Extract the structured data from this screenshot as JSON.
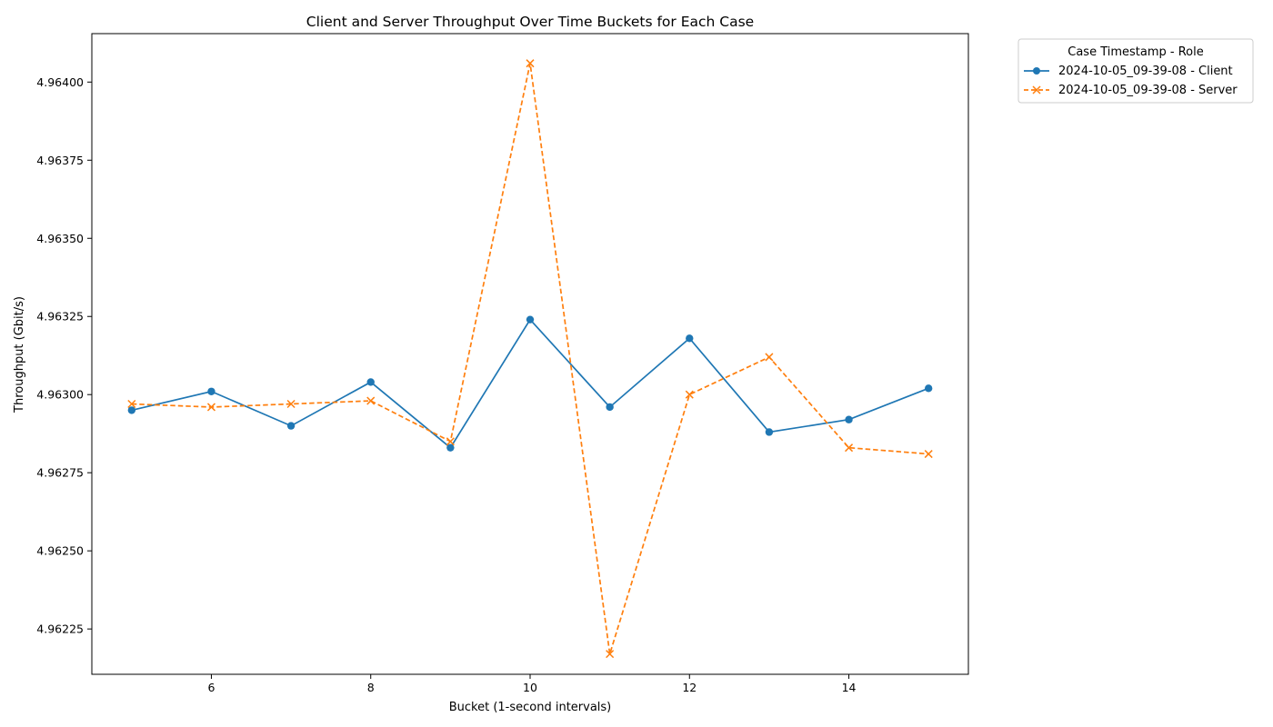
{
  "chart_data": {
    "type": "line",
    "title": "Client and Server Throughput Over Time Buckets for Each Case",
    "xlabel": "Bucket (1-second intervals)",
    "ylabel": "Throughput (Gbit/s)",
    "xlim": [
      4.5,
      15.5
    ],
    "ylim": [
      4.962105,
      4.964155
    ],
    "x_ticks": [
      6,
      8,
      10,
      12,
      14
    ],
    "y_ticks": [
      4.96225,
      4.9625,
      4.96275,
      4.963,
      4.96325,
      4.9635,
      4.96375,
      4.964
    ],
    "y_tick_labels": [
      "4.96225",
      "4.96250",
      "4.96275",
      "4.96300",
      "4.96325",
      "4.96350",
      "4.96375",
      "4.96400"
    ],
    "grid": false,
    "legend": {
      "title": "Case Timestamp - Role",
      "placement": "outside-top-right"
    },
    "x": [
      5,
      6,
      7,
      8,
      9,
      10,
      11,
      12,
      13,
      14,
      15
    ],
    "series": [
      {
        "name": "2024-10-05_09-39-08 - Client",
        "color": "#1f77b4",
        "line_style": "solid",
        "marker": "circle",
        "values": [
          4.96295,
          4.96301,
          4.9629,
          4.96304,
          4.96283,
          4.96324,
          4.96296,
          4.96318,
          4.96288,
          4.96292,
          4.96302
        ]
      },
      {
        "name": "2024-10-05_09-39-08 - Server",
        "color": "#ff7f0e",
        "line_style": "dashed",
        "marker": "x",
        "values": [
          4.96297,
          4.96296,
          4.96297,
          4.96298,
          4.96285,
          4.96406,
          4.96217,
          4.963,
          4.96312,
          4.96283,
          4.96281
        ]
      }
    ]
  }
}
